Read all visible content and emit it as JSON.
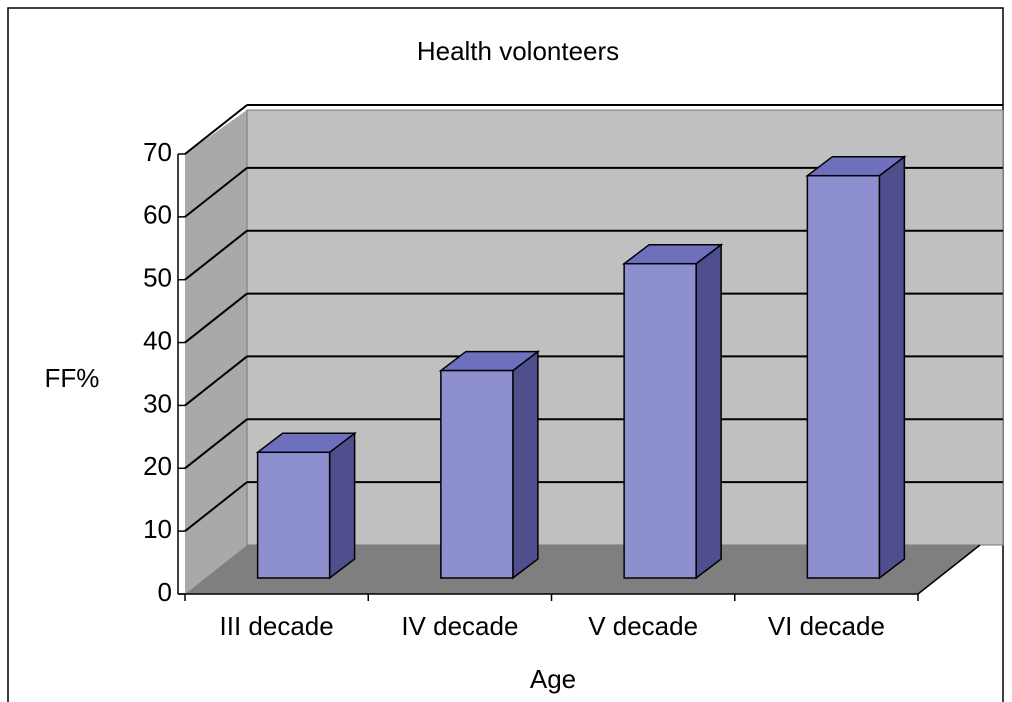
{
  "chart_data": {
    "type": "bar",
    "title": "Health volonteers",
    "categories": [
      "III decade",
      "IV decade",
      "V decade",
      "VI decade"
    ],
    "values": [
      20,
      33,
      50,
      64
    ],
    "color": "#8e8fcf",
    "ylim": [
      0,
      70
    ],
    "yticks": [
      0,
      10,
      20,
      30,
      40,
      50,
      60,
      70
    ],
    "grid": true,
    "y_label": "FF%",
    "x_label": "Age"
  }
}
